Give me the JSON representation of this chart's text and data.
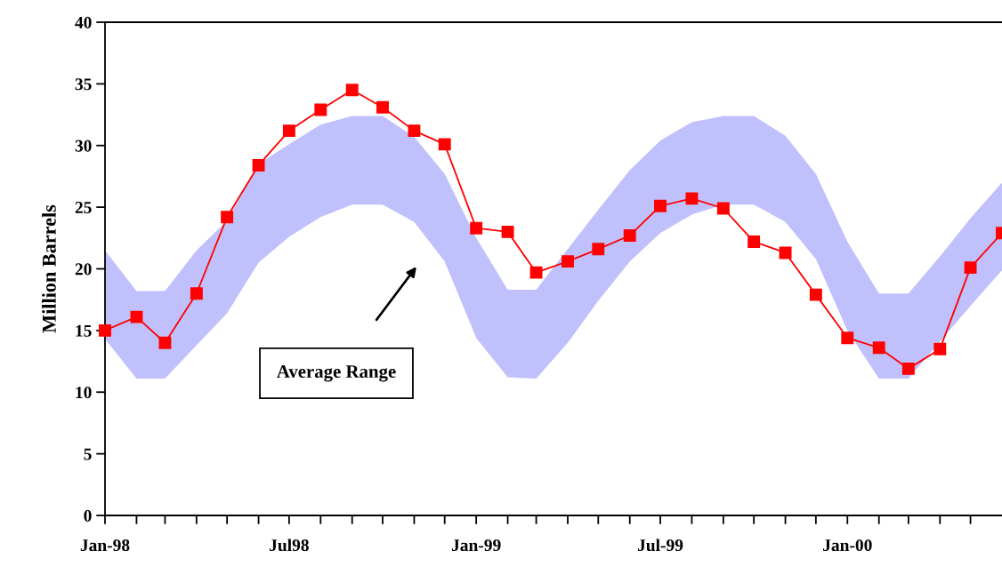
{
  "chart_data": {
    "type": "line",
    "ylabel": "Million Barrels",
    "x": [
      "1998-01",
      "1998-02",
      "1998-03",
      "1998-04",
      "1998-05",
      "1998-06",
      "1998-07",
      "1998-08",
      "1998-09",
      "1998-10",
      "1998-11",
      "1998-12",
      "1999-01",
      "1999-02",
      "1999-03",
      "1999-04",
      "1999-05",
      "1999-06",
      "1999-07",
      "1999-08",
      "1999-09",
      "1999-10",
      "1999-11",
      "1999-12",
      "2000-01",
      "2000-02",
      "2000-03",
      "2000-04",
      "2000-05",
      "2000-06"
    ],
    "series": [
      {
        "color": "#ff0000",
        "marker": "square",
        "line_style": "solid",
        "values": [
          15.0,
          16.1,
          14.0,
          18.0,
          24.2,
          28.4,
          31.2,
          32.9,
          34.5,
          33.1,
          31.2,
          30.1,
          23.3,
          23.0,
          19.7,
          20.6,
          21.6,
          22.7,
          25.1,
          25.7,
          24.9,
          22.2,
          21.3,
          17.9,
          14.4,
          13.6,
          11.9,
          13.5,
          20.1,
          22.9
        ],
        "lower": [
          14.3,
          11.1,
          11.1,
          13.8,
          16.4,
          20.5,
          22.6,
          24.2,
          25.2,
          25.2,
          23.8,
          20.6,
          14.4,
          11.2,
          11.1,
          14.0,
          17.4,
          20.6,
          22.9,
          24.4,
          25.2,
          25.2,
          23.8,
          20.8,
          15.0,
          11.1,
          11.1,
          14.1,
          17.0,
          19.9
        ],
        "upper": [
          21.5,
          18.2,
          18.2,
          21.5,
          23.9,
          28.5,
          30.1,
          31.7,
          32.4,
          32.4,
          30.7,
          27.7,
          22.5,
          18.3,
          18.3,
          21.6,
          24.8,
          28.0,
          30.4,
          31.9,
          32.4,
          32.4,
          30.8,
          27.7,
          22.2,
          18.0,
          18.0,
          21.0,
          24.1,
          27.0
        ]
      }
    ],
    "xlim": [
      "1998-01",
      "2000-06"
    ],
    "xticks": [
      {
        "value": "1998-01",
        "label": "Jan-98"
      },
      {
        "value": "1998-02",
        "label": null
      },
      {
        "value": "1998-03",
        "label": null
      },
      {
        "value": "1998-04",
        "label": null
      },
      {
        "value": "1998-05",
        "label": null
      },
      {
        "value": "1998-06",
        "label": null
      },
      {
        "value": "1998-07",
        "label": "Jul98"
      },
      {
        "value": "1998-08",
        "label": null
      },
      {
        "value": "1998-09",
        "label": null
      },
      {
        "value": "1998-10",
        "label": null
      },
      {
        "value": "1998-11",
        "label": null
      },
      {
        "value": "1998-12",
        "label": null
      },
      {
        "value": "1999-01",
        "label": "Jan-99"
      },
      {
        "value": "1999-02",
        "label": null
      },
      {
        "value": "1999-03",
        "label": null
      },
      {
        "value": "1999-04",
        "label": null
      },
      {
        "value": "1999-05",
        "label": null
      },
      {
        "value": "1999-06",
        "label": null
      },
      {
        "value": "1999-07",
        "label": "Jul-99"
      },
      {
        "value": "1999-08",
        "label": null
      },
      {
        "value": "1999-09",
        "label": null
      },
      {
        "value": "1999-10",
        "label": null
      },
      {
        "value": "1999-11",
        "label": null
      },
      {
        "value": "1999-12",
        "label": null
      },
      {
        "value": "2000-01",
        "label": "Jan-00"
      },
      {
        "value": "2000-02",
        "label": null
      },
      {
        "value": "2000-03",
        "label": null
      },
      {
        "value": "2000-04",
        "label": null
      },
      {
        "value": "2000-05",
        "label": null
      }
    ],
    "ylim": [
      0,
      40
    ],
    "yticks": [
      0,
      5,
      10,
      15,
      20,
      25,
      30,
      35,
      40
    ],
    "grid": false,
    "legend": false,
    "annotations": [
      "Average Range"
    ]
  }
}
